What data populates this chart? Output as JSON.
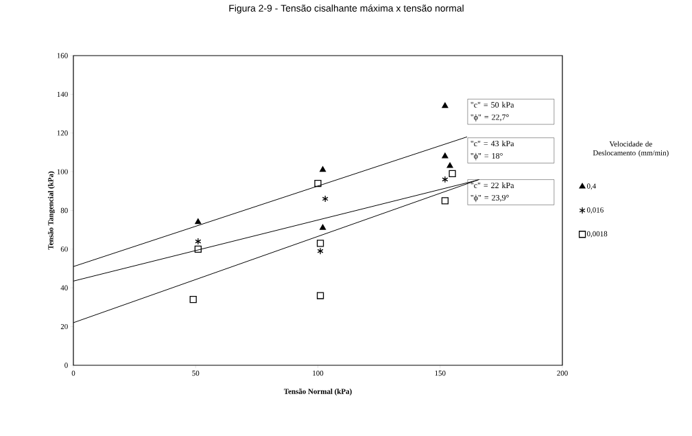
{
  "chart_data": {
    "type": "scatter",
    "title": "Figura 2-9 - Tensão cisalhante máxima x tensão normal",
    "xlabel": "Tensão Normal (kPa)",
    "ylabel": "Tensão Tangencial (kPa)",
    "legend_title": "Velocidade de Deslocamento (mm/min)",
    "xlim": [
      0,
      200
    ],
    "ylim": [
      0,
      160
    ],
    "xticks": [
      0,
      50,
      100,
      150,
      200
    ],
    "yticks": [
      0,
      20,
      40,
      60,
      80,
      100,
      120,
      140,
      160
    ],
    "grid": false,
    "legend": "right",
    "series": [
      {
        "name": "0,4",
        "color": "#000000",
        "marker": "triangle",
        "x": [
          51,
          102,
          102,
          152,
          152,
          154
        ],
        "values": [
          74,
          101,
          71,
          134,
          108,
          103
        ]
      },
      {
        "name": "0,016",
        "color": "#000000",
        "marker": "cross",
        "x": [
          51,
          103,
          101,
          152
        ],
        "values": [
          64,
          86,
          59,
          96
        ]
      },
      {
        "name": "0,0018",
        "color": "#000000",
        "marker": "square",
        "x": [
          51,
          49,
          100,
          101,
          101,
          155,
          152
        ],
        "values": [
          60,
          34,
          94,
          63,
          36,
          99,
          85
        ]
      },
      {
        "type": "line",
        "color": "#000000",
        "marker": "none",
        "line_style": "solid",
        "x": [
          0,
          161
        ],
        "values": [
          51,
          118
        ]
      },
      {
        "type": "line",
        "color": "#000000",
        "marker": "none",
        "line_style": "solid",
        "x": [
          0,
          165.5
        ],
        "values": [
          43.5,
          95.7
        ]
      },
      {
        "type": "line",
        "color": "#000000",
        "marker": "none",
        "line_style": "solid",
        "x": [
          0,
          166
        ],
        "values": [
          22,
          96
        ]
      }
    ],
    "annotations": [
      "\"c\" = 50 kPa",
      "\"ϕ\" = 22,7°",
      "\"c\" = 43 kPa",
      "\"ϕ\" = 18°",
      "\"c\" = 22 kPa",
      "\"ϕ\" = 23,9°"
    ]
  }
}
